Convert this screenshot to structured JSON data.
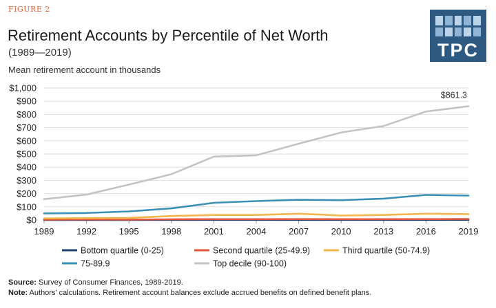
{
  "header": {
    "figure_label": "FIGURE 2",
    "title": "Retirement Accounts by Percentile of Net Worth",
    "subtitle": "(1989—2019)",
    "logo_text": "TPC"
  },
  "footer": {
    "source_label": "Source:",
    "source_text": " Survey of Consumer Finances, 1989-2019.",
    "note_label": "Note:",
    "note_text": " Authors' calculations. Retirement account balances exclude accrued benefits on defined benefit plans."
  },
  "colors": {
    "accent": "#e0643c",
    "logo_bg": "#2e5a82"
  },
  "chart_data": {
    "type": "line",
    "title": "Retirement Accounts by Percentile of Net Worth",
    "ylabel": "Mean retirement account in thousands",
    "xlabel": "",
    "x": [
      "1989",
      "1992",
      "1995",
      "1998",
      "2001",
      "2004",
      "2007",
      "2010",
      "2013",
      "2016",
      "2019"
    ],
    "ylim": [
      0,
      1000
    ],
    "yticks": [
      0,
      100,
      200,
      300,
      400,
      500,
      600,
      700,
      800,
      900,
      1000
    ],
    "ytick_labels": [
      "$0",
      "$100",
      "$200",
      "$300",
      "$400",
      "$500",
      "$600",
      "$700",
      "$800",
      "$900",
      "$1,000"
    ],
    "grid": true,
    "legend_position": "bottom",
    "series": [
      {
        "name": "Bottom quartile (0-25)",
        "color": "#1f3f6e",
        "values": [
          0.5,
          0.5,
          0.5,
          0.8,
          1,
          1,
          1.2,
          1,
          1,
          1.2,
          1.5
        ]
      },
      {
        "name": "Second quartile (25-49.9)",
        "color": "#e2553c",
        "values": [
          3,
          4,
          3,
          5,
          6,
          6,
          7,
          6,
          6,
          7,
          8
        ]
      },
      {
        "name": "Third quartile (50-74.9)",
        "color": "#f2b54a",
        "values": [
          12,
          14,
          16,
          30,
          38,
          38,
          48,
          34,
          38,
          48,
          45
        ]
      },
      {
        "name": "75-89.9",
        "color": "#3a8fb5",
        "values": [
          50,
          53,
          65,
          88,
          130,
          143,
          153,
          150,
          162,
          190,
          185
        ]
      },
      {
        "name": "Top decile (90-100)",
        "color": "#c3c3c3",
        "values": [
          158,
          192,
          268,
          347,
          480,
          490,
          578,
          663,
          712,
          822,
          861.3
        ]
      }
    ],
    "annotations": [
      {
        "series": "Top decile (90-100)",
        "x": "2019",
        "text": "$861.3"
      }
    ]
  }
}
